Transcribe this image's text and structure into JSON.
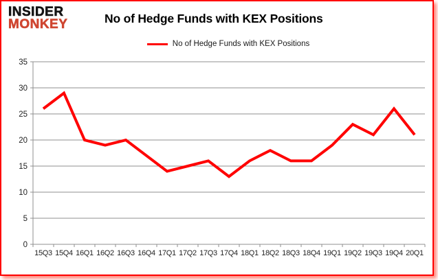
{
  "brand": {
    "line1": "INSIDER",
    "line2": "MONKEY"
  },
  "title": "No of Hedge Funds with KEX Positions",
  "legend": {
    "label": "No of Hedge Funds with KEX Positions"
  },
  "colors": {
    "line": "#ff0000",
    "border": "#ff0000",
    "brand_black": "#141414",
    "brand_red": "#cf4631",
    "grid": "#8f8f8f",
    "axis": "#8f8f8f",
    "tick_text": "#1f1f1f"
  },
  "chart_data": {
    "type": "line",
    "title": "No of Hedge Funds with KEX Positions",
    "categories": [
      "15Q3",
      "15Q4",
      "16Q1",
      "16Q2",
      "16Q3",
      "16Q4",
      "17Q1",
      "17Q2",
      "17Q3",
      "17Q4",
      "18Q1",
      "18Q2",
      "18Q3",
      "18Q4",
      "19Q1",
      "19Q2",
      "19Q3",
      "19Q4",
      "20Q1"
    ],
    "series": [
      {
        "name": "No of Hedge Funds with KEX Positions",
        "color": "#ff0000",
        "values": [
          26,
          29,
          20,
          19,
          20,
          17,
          14,
          15,
          16,
          13,
          16,
          18,
          16,
          16,
          19,
          23,
          21,
          26,
          21
        ]
      }
    ],
    "ylim": [
      0,
      35
    ],
    "ytick_step": 5,
    "yticks": [
      0,
      5,
      10,
      15,
      20,
      25,
      30,
      35
    ],
    "grid": true,
    "legend_position": "top-center"
  }
}
